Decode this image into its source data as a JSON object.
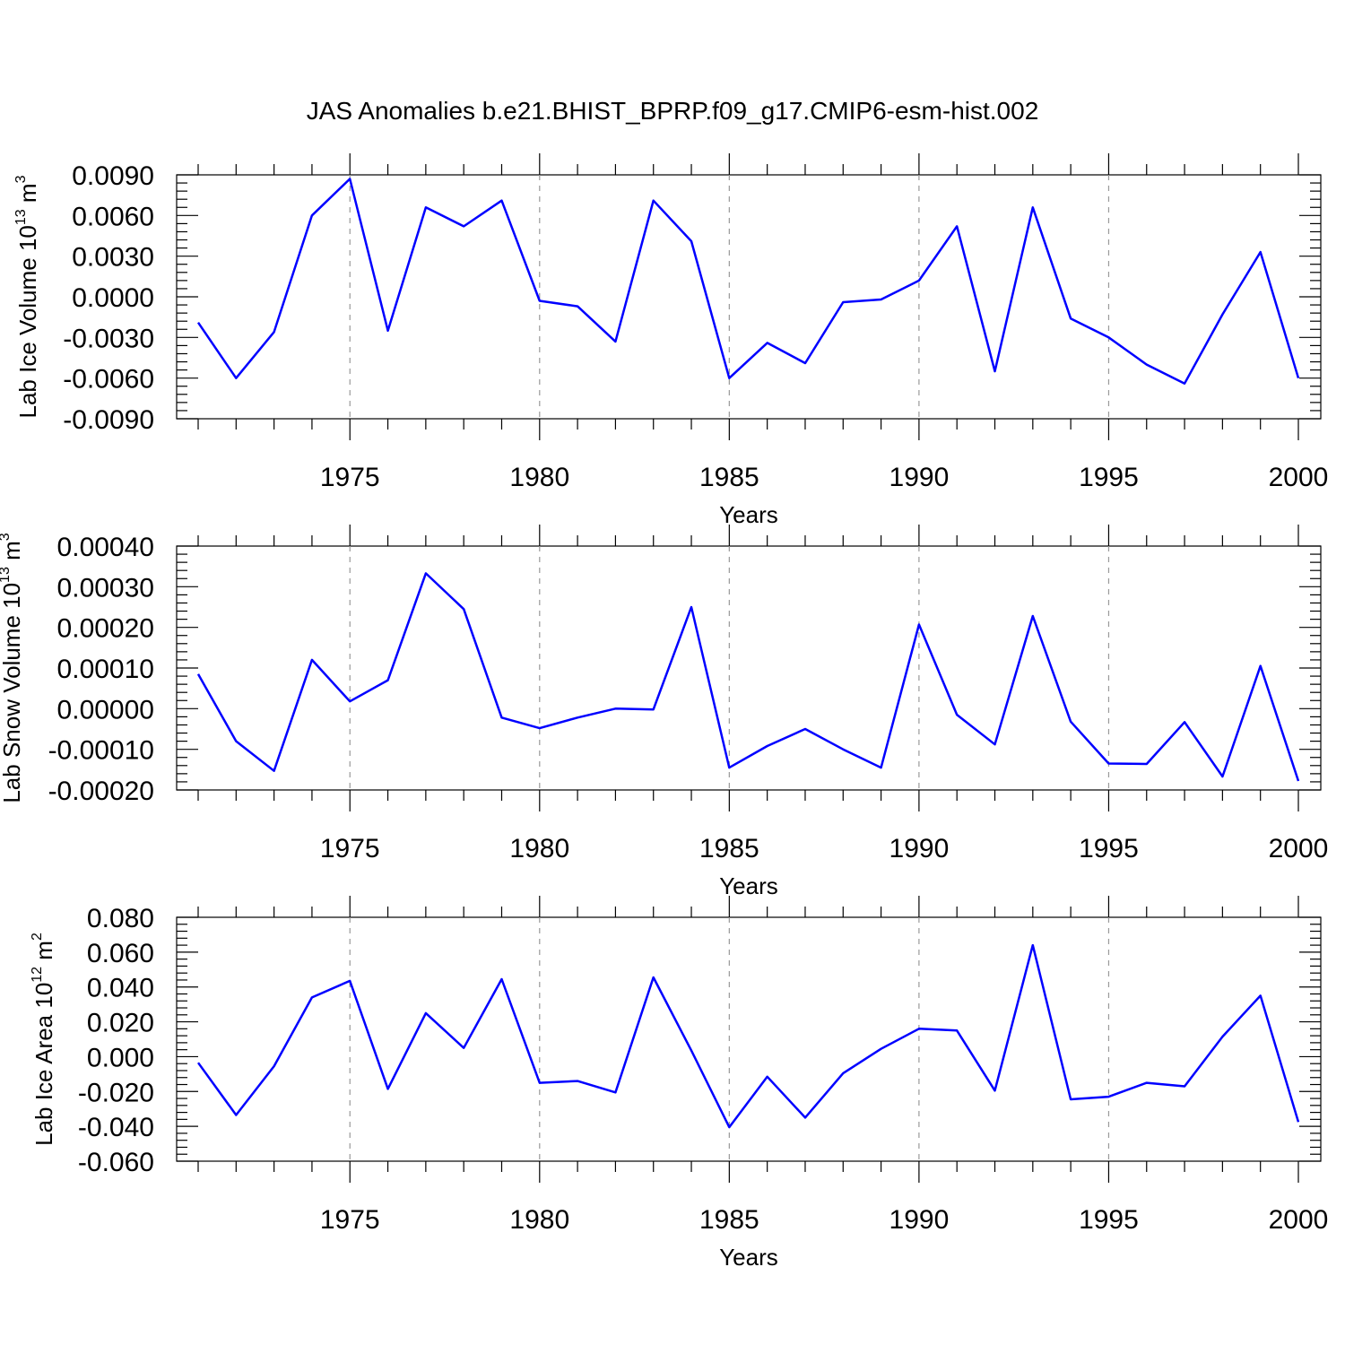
{
  "title": "JAS Anomalies b.e21.BHIST_BPRP.f09_g17.CMIP6-esm-hist.002",
  "colors": {
    "line": "#0000ff",
    "axis": "#000000",
    "grid": "#999999"
  },
  "chart_data": [
    {
      "type": "line",
      "title": "JAS Anomalies b.e21.BHIST_BPRP.f09_g17.CMIP6-esm-hist.002",
      "xlabel": "Years",
      "ylabel_main": "Lab Ice Volume 10",
      "ylabel_exp": "13",
      "ylabel_unit": " m",
      "ylabel_unit_exp": "3",
      "xlim": [
        1971,
        2000
      ],
      "ylim": [
        -0.009,
        0.009
      ],
      "yticks": [
        -0.009,
        -0.006,
        -0.003,
        0.0,
        0.003,
        0.006,
        0.009
      ],
      "ytick_labels": [
        "-0.0090",
        "-0.0060",
        "-0.0030",
        "0.0000",
        "0.0030",
        "0.0060",
        "0.0090"
      ],
      "xticks": [
        1975,
        1980,
        1985,
        1990,
        1995,
        2000
      ],
      "xtick_labels": [
        "1975",
        "1980",
        "1985",
        "1990",
        "1995",
        "2000"
      ],
      "x": [
        1971,
        1972,
        1973,
        1974,
        1975,
        1976,
        1977,
        1978,
        1979,
        1980,
        1981,
        1982,
        1983,
        1984,
        1985,
        1986,
        1987,
        1988,
        1989,
        1990,
        1991,
        1992,
        1993,
        1994,
        1995,
        1996,
        1997,
        1998,
        1999,
        2000
      ],
      "values": [
        -0.0019,
        -0.006,
        -0.0026,
        0.006,
        0.0087,
        -0.0025,
        0.0066,
        0.0052,
        0.0071,
        -0.0003,
        -0.0007,
        -0.0033,
        0.0071,
        0.0041,
        -0.006,
        -0.0034,
        -0.0049,
        -0.0004,
        -0.0002,
        0.0012,
        0.0052,
        -0.0055,
        0.0066,
        -0.0016,
        -0.003,
        -0.005,
        -0.0064,
        -0.0013,
        0.0033,
        -0.006
      ]
    },
    {
      "type": "line",
      "xlabel": "Years",
      "ylabel_main": "Lab Snow Volume 10",
      "ylabel_exp": "13",
      "ylabel_unit": " m",
      "ylabel_unit_exp": "3",
      "xlim": [
        1971,
        2000
      ],
      "ylim": [
        -0.0002,
        0.0004
      ],
      "yticks": [
        -0.0002,
        -0.0001,
        0.0,
        0.0001,
        0.0002,
        0.0003,
        0.0004
      ],
      "ytick_labels": [
        "-0.00020",
        "-0.00010",
        "0.00000",
        "0.00010",
        "0.00020",
        "0.00030",
        "0.00040"
      ],
      "xticks": [
        1975,
        1980,
        1985,
        1990,
        1995,
        2000
      ],
      "xtick_labels": [
        "1975",
        "1980",
        "1985",
        "1990",
        "1995",
        "2000"
      ],
      "x": [
        1971,
        1972,
        1973,
        1974,
        1975,
        1976,
        1977,
        1978,
        1979,
        1980,
        1981,
        1982,
        1983,
        1984,
        1985,
        1986,
        1987,
        1988,
        1989,
        1990,
        1991,
        1992,
        1993,
        1994,
        1995,
        1996,
        1997,
        1998,
        1999,
        2000
      ],
      "values": [
        8.5e-05,
        -8e-05,
        -0.000153,
        0.00012,
        1.8e-05,
        7e-05,
        0.000333,
        0.000245,
        -2.2e-05,
        -4.8e-05,
        -2.2e-05,
        0.0,
        -2e-06,
        0.00025,
        -0.000145,
        -9.2e-05,
        -5e-05,
        -0.0001,
        -0.000145,
        0.000207,
        -1.5e-05,
        -8.8e-05,
        0.000228,
        -3.2e-05,
        -0.000135,
        -0.000136,
        -3.3e-05,
        -0.000167,
        0.000105,
        -0.000178
      ]
    },
    {
      "type": "line",
      "xlabel": "Years",
      "ylabel_main": "Lab Ice Area 10",
      "ylabel_exp": "12",
      "ylabel_unit": " m",
      "ylabel_unit_exp": "2",
      "xlim": [
        1971,
        2000
      ],
      "ylim": [
        -0.06,
        0.08
      ],
      "yticks": [
        -0.06,
        -0.04,
        -0.02,
        0.0,
        0.02,
        0.04,
        0.06,
        0.08
      ],
      "ytick_labels": [
        "-0.060",
        "-0.040",
        "-0.020",
        "0.000",
        "0.020",
        "0.040",
        "0.060",
        "0.080"
      ],
      "xticks": [
        1975,
        1980,
        1985,
        1990,
        1995,
        2000
      ],
      "xtick_labels": [
        "1975",
        "1980",
        "1985",
        "1990",
        "1995",
        "2000"
      ],
      "x": [
        1971,
        1972,
        1973,
        1974,
        1975,
        1976,
        1977,
        1978,
        1979,
        1980,
        1981,
        1982,
        1983,
        1984,
        1985,
        1986,
        1987,
        1988,
        1989,
        1990,
        1991,
        1992,
        1993,
        1994,
        1995,
        1996,
        1997,
        1998,
        1999,
        2000
      ],
      "values": [
        -0.0035,
        -0.0335,
        -0.0055,
        0.034,
        0.0435,
        -0.0185,
        0.025,
        0.005,
        0.0445,
        -0.015,
        -0.014,
        -0.0205,
        0.0455,
        0.0035,
        -0.0405,
        -0.0115,
        -0.035,
        -0.0095,
        0.0045,
        0.016,
        0.015,
        -0.0195,
        0.064,
        -0.0245,
        -0.023,
        -0.015,
        -0.017,
        0.0115,
        0.035,
        -0.0375
      ]
    }
  ]
}
